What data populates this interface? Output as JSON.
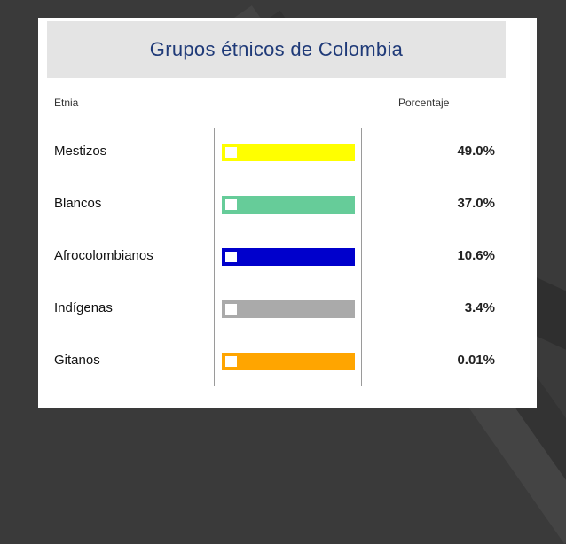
{
  "chart_data": {
    "type": "table",
    "title": "Grupos étnicos de Colombia",
    "columns": [
      "Etnia",
      "Porcentaje"
    ],
    "categories": [
      "Mestizos",
      "Blancos",
      "Afrocolombianos",
      "Indígenas",
      "Gitanos"
    ],
    "values_text": [
      "49.0%",
      "37.0%",
      "10.6%",
      "3.4%",
      "0.01%"
    ],
    "values": [
      49.0,
      37.0,
      10.6,
      3.4,
      0.01
    ],
    "colors": [
      "#ffff00",
      "#66cc99",
      "#0000cc",
      "#aaaaaa",
      "#ffa500"
    ]
  }
}
